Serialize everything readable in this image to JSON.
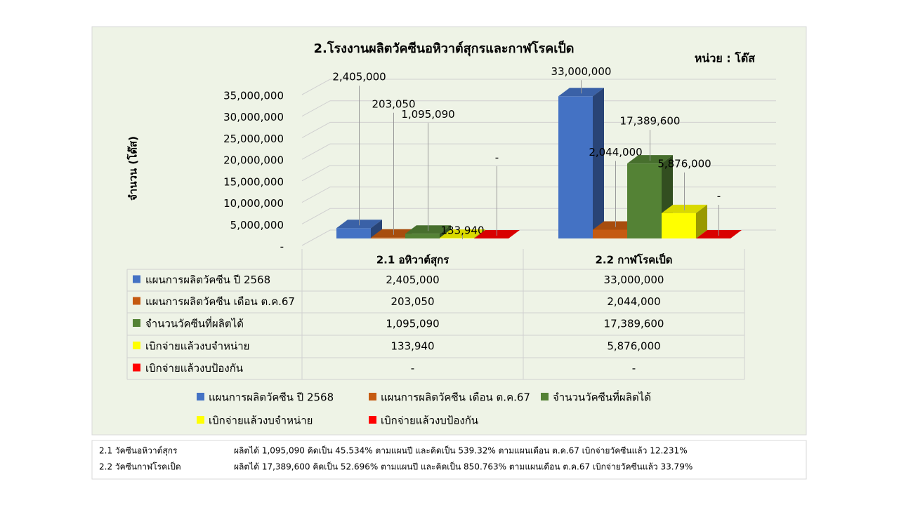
{
  "chart_data": {
    "type": "bar3d",
    "title": "2.โรงงานผลิตวัคซีนอหิวาต์สุกรและกาฬโรคเป็ด",
    "unit_label": "หน่วย : โด๊ส",
    "y_label": "จำนวน (โด๊ส)",
    "categories": [
      "2.1 อหิวาต์สุกร",
      "2.2 กาฬโรคเป็ด"
    ],
    "series": [
      {
        "name": "แผนการผลิตวัคซีน ปี 2568",
        "color": "#4472c4",
        "values": [
          2405000,
          33000000
        ],
        "value_labels": [
          "2,405,000",
          "33,000,000"
        ]
      },
      {
        "name": "แผนการผลิตวัคซีน เดือน ต.ค.67",
        "color": "#c55a11",
        "values": [
          203050,
          2044000
        ],
        "value_labels": [
          "203,050",
          "2,044,000"
        ]
      },
      {
        "name": "จำนวนวัคซีนที่ผลิตได้",
        "color": "#548235",
        "values": [
          1095090,
          17389600
        ],
        "value_labels": [
          "1,095,090",
          "17,389,600"
        ]
      },
      {
        "name": "เบิกจ่ายแล้วงบจำหน่าย",
        "color": "#ffff00",
        "values": [
          133940,
          5876000
        ],
        "value_labels": [
          "133,940",
          "5,876,000"
        ]
      },
      {
        "name": "เบิกจ่ายแล้วงบป้องกัน",
        "color": "#ff0000",
        "values": [
          0,
          0
        ],
        "value_labels": [
          "-",
          "-"
        ]
      }
    ],
    "ylim": [
      0,
      35000000
    ],
    "yticks": [
      {
        "value": 0,
        "label": "-"
      },
      {
        "value": 5000000,
        "label": "5,000,000"
      },
      {
        "value": 10000000,
        "label": "10,000,000"
      },
      {
        "value": 15000000,
        "label": "15,000,000"
      },
      {
        "value": 20000000,
        "label": "20,000,000"
      },
      {
        "value": 25000000,
        "label": "25,000,000"
      },
      {
        "value": 30000000,
        "label": "30,000,000"
      },
      {
        "value": 35000000,
        "label": "35,000,000"
      }
    ],
    "grid": true
  },
  "notes": [
    {
      "label": "2.1 วัคซีนอหิวาต์สุกร",
      "text": "ผลิตได้ 1,095,090 คิดเป็น 45.534% ตามแผนปี และคิดเป็น 539.32% ตามแผนเดือน ต.ค.67 เบิกจ่ายวัคซีนแล้ว 12.231%"
    },
    {
      "label": "2.2 วัคซีนกาฬโรคเป็ด",
      "text": "ผลิตได้ 17,389,600 คิดเป็น 52.696% ตามแผนปี และคิดเป็น 850.763% ตามแผนเดือน ต.ค.67 เบิกจ่ายวัคซีนแล้ว 33.79%"
    }
  ]
}
